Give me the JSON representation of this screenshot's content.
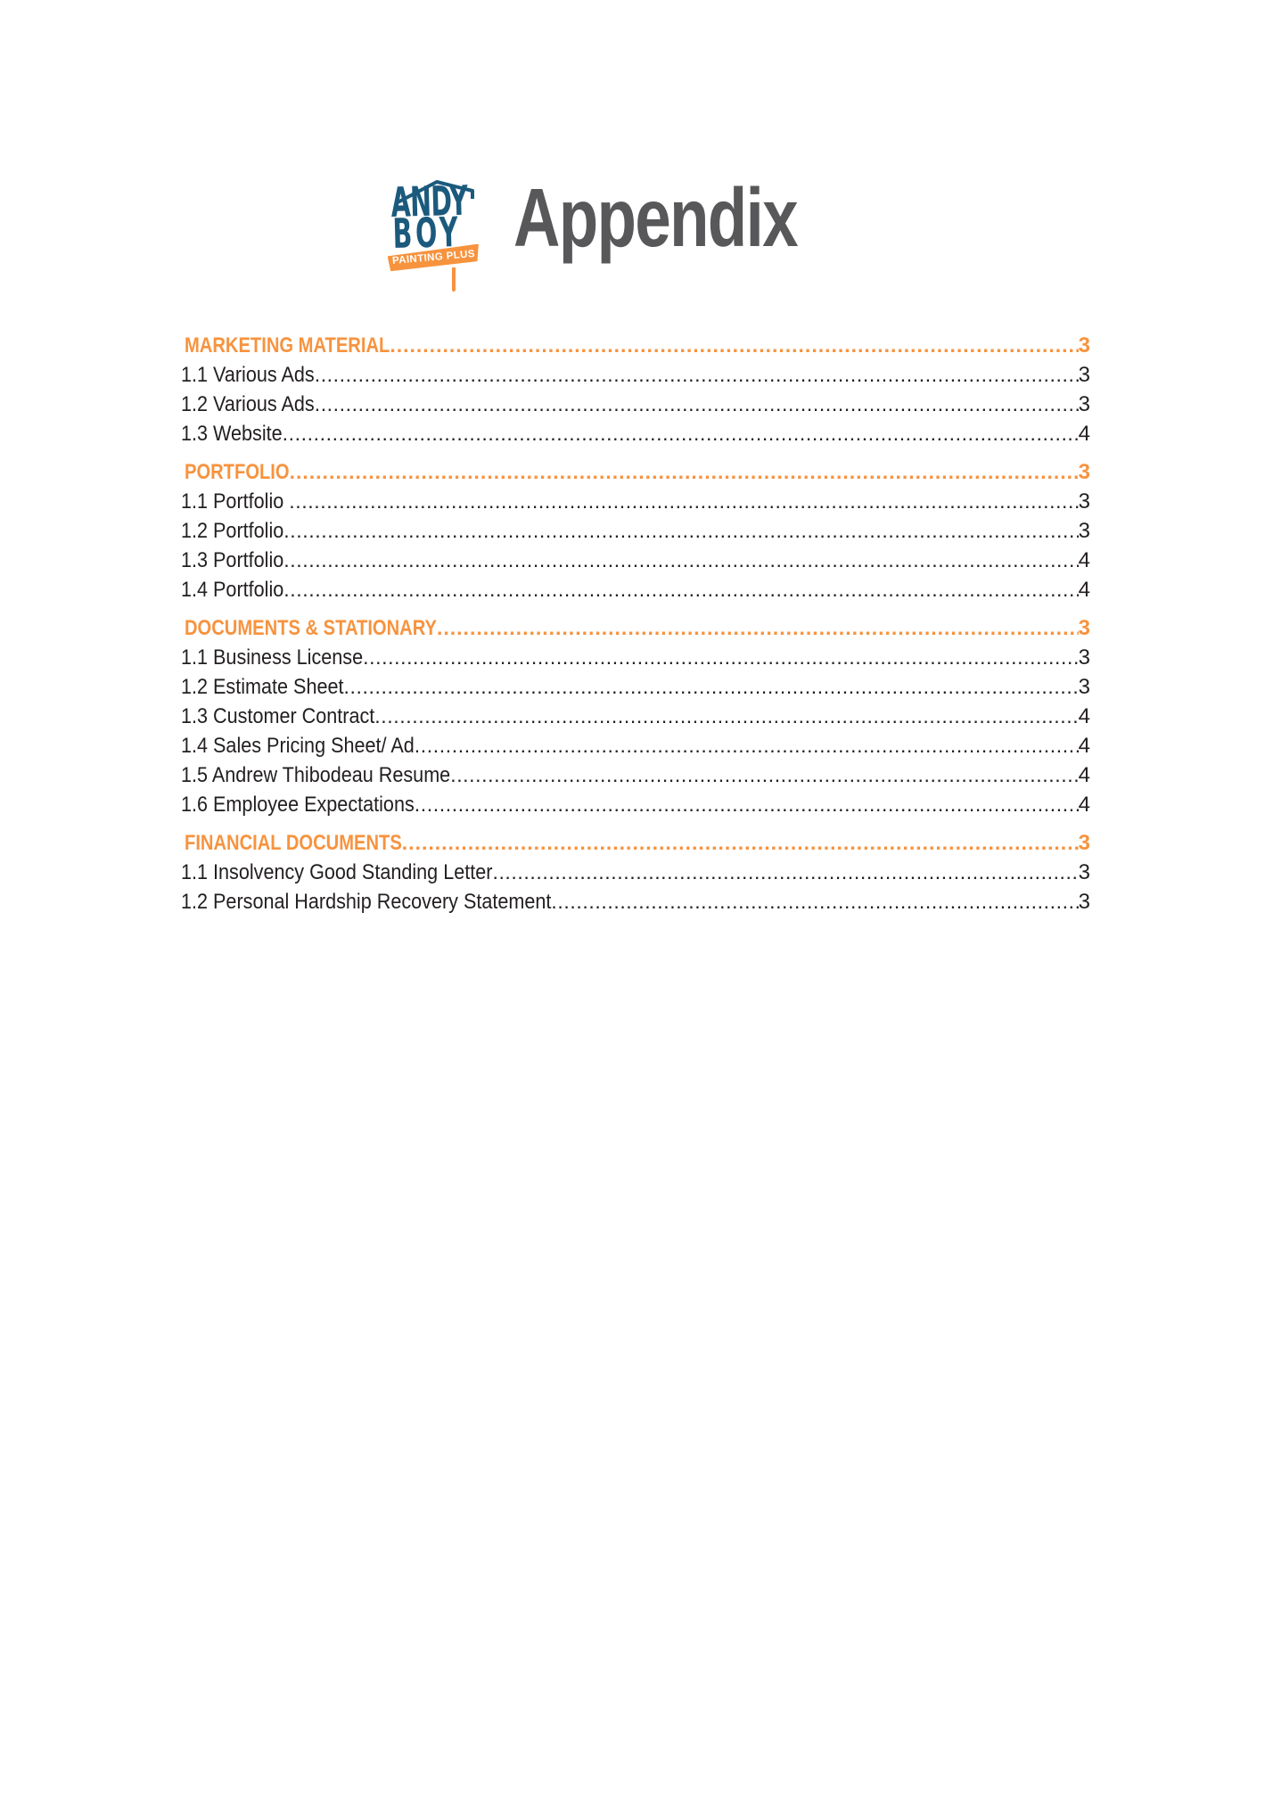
{
  "page": {
    "title": "Appendix"
  },
  "logo": {
    "word1": "ANDY",
    "word2": "BOY",
    "banner": "PAINTING PLUS"
  },
  "toc": {
    "sections": [
      {
        "label": "MARKETING MATERIAL",
        "page": "3",
        "items": [
          {
            "label": "1.1 Various Ads",
            "page": "3"
          },
          {
            "label": "1.2 Various Ads",
            "page": "3"
          },
          {
            "label": "1.3 Website",
            "page": "4"
          }
        ]
      },
      {
        "label": "PORTFOLIO",
        "page": "3",
        "items": [
          {
            "label": "1.1 Portfolio ",
            "page": "3"
          },
          {
            "label": "1.2 Portfolio",
            "page": "3"
          },
          {
            "label": "1.3 Portfolio",
            "page": "4"
          },
          {
            "label": "1.4 Portfolio",
            "page": "4"
          }
        ]
      },
      {
        "label": "DOCUMENTS & STATIONARY",
        "page": "3",
        "items": [
          {
            "label": "1.1 Business License",
            "page": "3"
          },
          {
            "label": "1.2 Estimate Sheet",
            "page": "3"
          },
          {
            "label": "1.3 Customer Contract",
            "page": "4"
          },
          {
            "label": "1.4 Sales Pricing Sheet/ Ad",
            "page": "4"
          },
          {
            "label": "1.5 Andrew Thibodeau Resume",
            "page": "4"
          },
          {
            "label": "1.6 Employee Expectations",
            "page": "4"
          }
        ]
      },
      {
        "label": "FINANCIAL DOCUMENTS",
        "page": "3",
        "items": [
          {
            "label": "1.1 Insolvency Good Standing Letter",
            "page": "3"
          },
          {
            "label": "1.2 Personal Hardship Recovery Statement",
            "page": "3"
          }
        ]
      }
    ]
  },
  "colors": {
    "accent_orange": "#F7933E",
    "logo_blue": "#1B5A7D",
    "title_gray": "#58585A",
    "text": "#231F20"
  }
}
